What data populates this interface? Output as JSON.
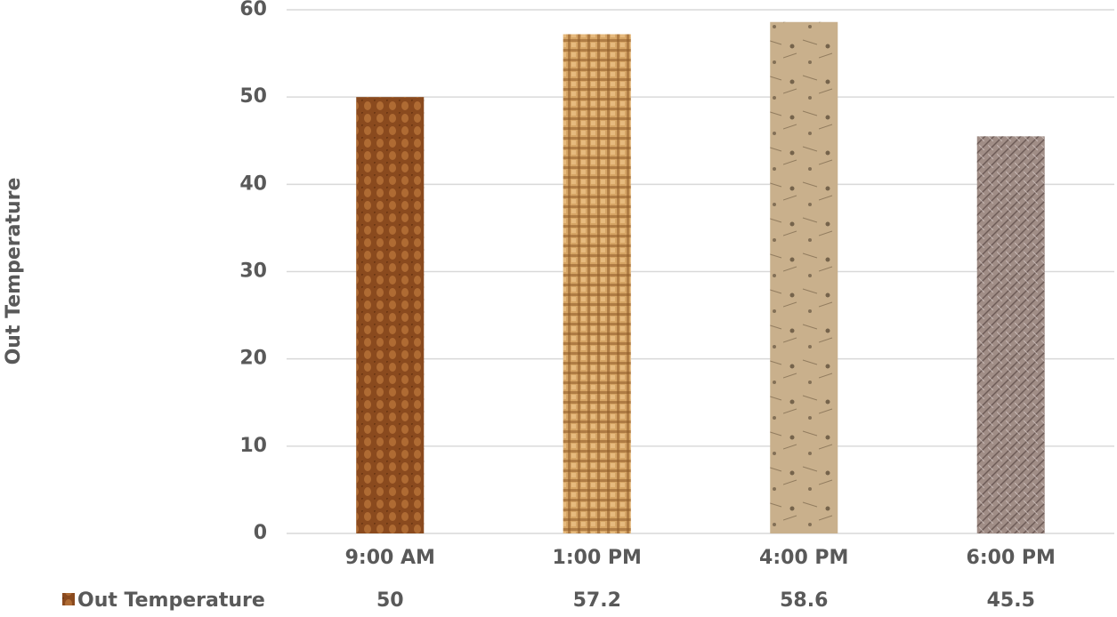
{
  "chart_data": {
    "type": "bar",
    "ylabel": "Out Temperature",
    "categories": [
      "9:00 AM",
      "1:00 PM",
      "4:00 PM",
      "6:00 PM"
    ],
    "series": [
      {
        "name": "Out Temperature",
        "values": [
          50,
          57.2,
          58.6,
          45.5
        ],
        "colors": [
          "#8a4a1e",
          "#d6a565",
          "#c9b08c",
          "#a08d86"
        ]
      }
    ],
    "ylim": [
      0,
      60
    ],
    "yticks": [
      0,
      10,
      20,
      30,
      40,
      50,
      60
    ],
    "grid": true,
    "data_table": true
  }
}
